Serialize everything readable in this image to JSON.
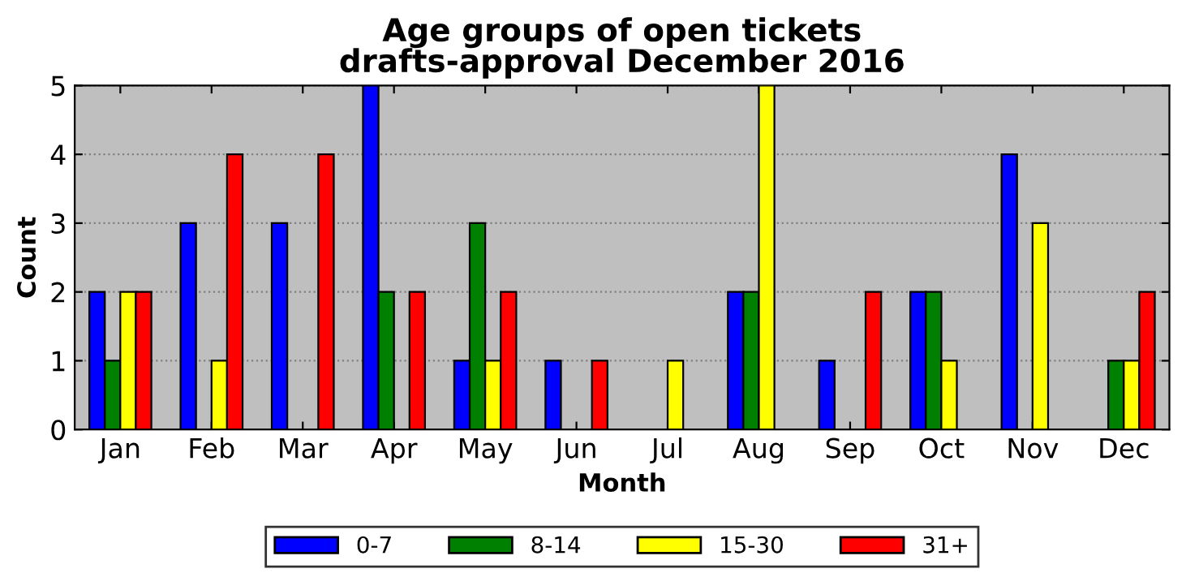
{
  "chart_data": {
    "type": "bar",
    "title": "Age groups of open tickets\ndrafts-approval December 2016",
    "xlabel": "Month",
    "ylabel": "Count",
    "categories": [
      "Jan",
      "Feb",
      "Mar",
      "Apr",
      "May",
      "Jun",
      "Jul",
      "Aug",
      "Sep",
      "Oct",
      "Nov",
      "Dec"
    ],
    "series": [
      {
        "name": "0-7",
        "color": "#0000ff",
        "values": [
          2,
          3,
          3,
          5,
          1,
          1,
          0,
          2,
          1,
          2,
          4,
          0
        ]
      },
      {
        "name": "8-14",
        "color": "#008000",
        "values": [
          1,
          0,
          0,
          2,
          3,
          0,
          0,
          2,
          0,
          2,
          0,
          1
        ]
      },
      {
        "name": "15-30",
        "color": "#ffff00",
        "values": [
          2,
          1,
          0,
          0,
          1,
          0,
          1,
          5,
          0,
          1,
          3,
          1
        ]
      },
      {
        "name": "31+",
        "color": "#ff0000",
        "values": [
          2,
          4,
          4,
          2,
          2,
          1,
          0,
          0,
          2,
          0,
          0,
          2
        ]
      }
    ],
    "ylim": [
      0,
      5
    ],
    "yticks": [
      0,
      1,
      2,
      3,
      4,
      5
    ],
    "grid": "y",
    "legend": "bottom"
  }
}
